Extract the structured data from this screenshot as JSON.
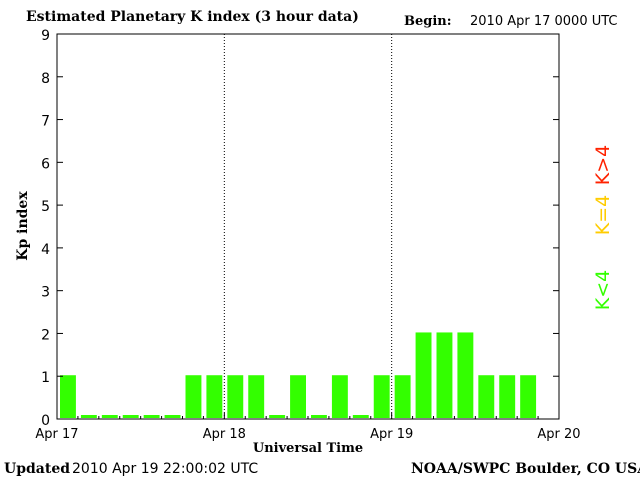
{
  "header": {
    "title": "Estimated Planetary K index (3 hour data)",
    "begin_label": "Begin:",
    "begin_value": "2010 Apr 17 0000 UTC"
  },
  "footer": {
    "updated_label": "Updated",
    "updated_value": "2010 Apr 19 22:00:02 UTC",
    "credit": "NOAA/SWPC Boulder, CO USA"
  },
  "legend": [
    {
      "label": "K>4",
      "color": "#ff2200"
    },
    {
      "label": "K=4",
      "color": "#ffcc00"
    },
    {
      "label": "K<4",
      "color": "#33ff00"
    }
  ],
  "chart_data": {
    "type": "bar",
    "title": "Estimated Planetary K index (3 hour data)",
    "xlabel": "Universal Time",
    "ylabel": "Kp index",
    "ylim": [
      0,
      9
    ],
    "yticks": [
      "0",
      "1",
      "2",
      "3",
      "4",
      "5",
      "6",
      "7",
      "8",
      "9"
    ],
    "xticks": [
      "Apr 17",
      "Apr 18",
      "Apr 19",
      "Apr 20"
    ],
    "bars_per_day": 8,
    "days": 3,
    "bar_color": "#33ff00",
    "values": [
      1,
      0,
      0,
      0,
      0,
      0,
      1,
      1,
      1,
      1,
      0,
      1,
      0,
      1,
      0,
      1,
      1,
      2,
      2,
      2,
      1,
      1,
      1
    ],
    "grid": "vertical dotted lines at day boundaries"
  }
}
